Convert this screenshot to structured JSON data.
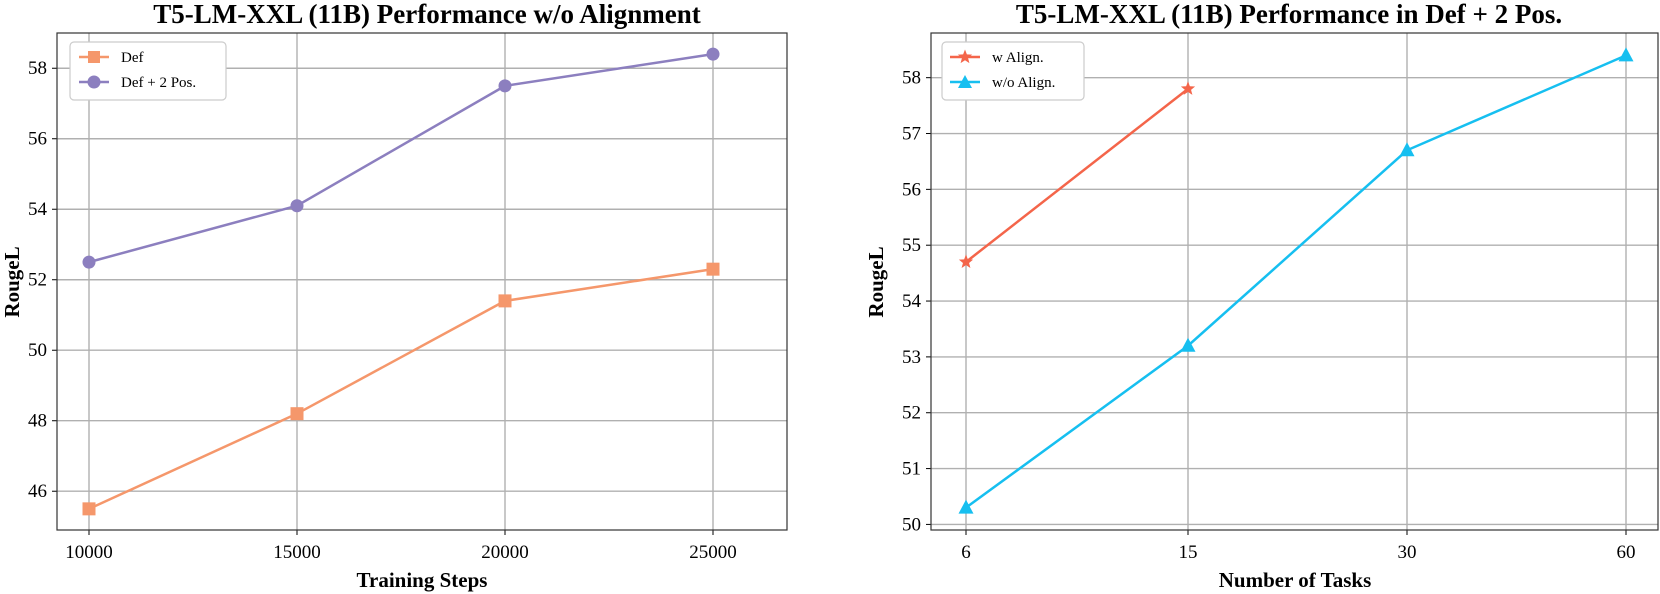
{
  "chart_data": [
    {
      "type": "line",
      "title": "T5-LM-XXL (11B) Performance w/o Alignment",
      "xlabel": "Training Steps",
      "ylabel": "RougeL",
      "x_tick_labels": [
        "10000",
        "15000",
        "20000",
        "25000"
      ],
      "y_tick_labels": [
        "46",
        "48",
        "50",
        "52",
        "54",
        "56",
        "58"
      ],
      "ylim": [
        44.9,
        59.0
      ],
      "grid": true,
      "legend_position": "top-left",
      "series": [
        {
          "name": "Def",
          "marker": "square",
          "color": "#f5976b",
          "values": [
            45.5,
            48.2,
            51.4,
            52.3
          ]
        },
        {
          "name": "Def + 2 Pos.",
          "marker": "circle",
          "color": "#8c7fbf",
          "values": [
            52.5,
            54.1,
            57.5,
            58.4
          ]
        }
      ]
    },
    {
      "type": "line",
      "title": "T5-LM-XXL (11B) Performance in Def + 2 Pos.",
      "xlabel": "Number of Tasks",
      "ylabel": "RougeL",
      "x_tick_labels": [
        "6",
        "15",
        "30",
        "60"
      ],
      "y_tick_labels": [
        "50",
        "51",
        "52",
        "53",
        "54",
        "55",
        "56",
        "57",
        "58"
      ],
      "ylim": [
        49.9,
        58.8
      ],
      "grid": true,
      "legend_position": "top-left",
      "series": [
        {
          "name": "w Align.",
          "marker": "star",
          "color": "#f4654a",
          "values": [
            54.7,
            57.8
          ]
        },
        {
          "name": "w/o Align.",
          "marker": "triangle",
          "color": "#16bff0",
          "values": [
            50.3,
            53.2,
            56.7,
            58.4
          ]
        }
      ]
    }
  ]
}
